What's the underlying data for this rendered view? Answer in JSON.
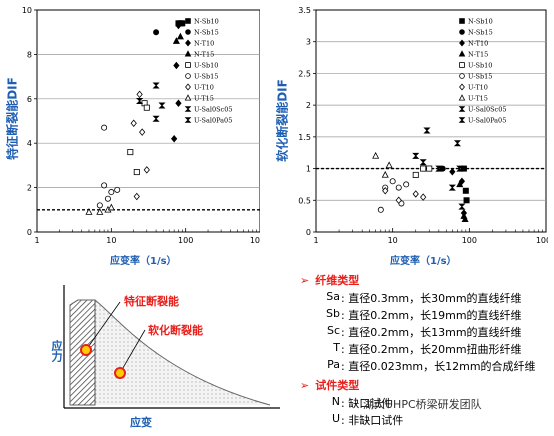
{
  "chart_data": [
    {
      "type": "scatter",
      "xlabel": "应变率（1/s）",
      "ylabel": "特征断裂能DIF",
      "xscale": "log",
      "xlim": [
        1,
        1000
      ],
      "ylim": [
        0,
        10
      ],
      "xticks": [
        "1",
        "10",
        "100",
        "1000"
      ],
      "yticks": [
        "0",
        "2",
        "4",
        "6",
        "8",
        "10"
      ],
      "grid": "horizontal",
      "ref_line": 1,
      "legend_position": "right",
      "series": [
        {
          "name": "N-Sb10",
          "marker": "square-filled",
          "points": [
            [
              80,
              9.4
            ],
            [
              85,
              9.4
            ],
            [
              90,
              9.4
            ]
          ]
        },
        {
          "name": "N-Sb15",
          "marker": "circle-filled",
          "points": [
            [
              40,
              9.0
            ]
          ]
        },
        {
          "name": "N-T10",
          "marker": "diamond-filled",
          "points": [
            [
              80,
              9.3
            ],
            [
              75,
              7.5
            ],
            [
              80,
              5.8
            ],
            [
              70,
              4.2
            ]
          ]
        },
        {
          "name": "N-T15",
          "marker": "triangle-filled",
          "points": [
            [
              85,
              8.8
            ],
            [
              75,
              8.6
            ]
          ]
        },
        {
          "name": "U-Sb10",
          "marker": "square-open",
          "points": [
            [
              18,
              3.6
            ],
            [
              22,
              2.7
            ],
            [
              28,
              5.8
            ],
            [
              30,
              5.6
            ]
          ]
        },
        {
          "name": "U-Sb15",
          "marker": "circle-open",
          "points": [
            [
              8,
              4.7
            ],
            [
              8,
              2.1
            ],
            [
              12,
              1.9
            ],
            [
              10,
              1.8
            ],
            [
              7,
              1.2
            ],
            [
              9,
              1.5
            ]
          ]
        },
        {
          "name": "U-T10",
          "marker": "diamond-open",
          "points": [
            [
              24,
              6.2
            ],
            [
              26,
              4.5
            ],
            [
              20,
              4.9
            ],
            [
              22,
              1.6
            ],
            [
              30,
              2.8
            ]
          ]
        },
        {
          "name": "U-T15",
          "marker": "triangle-open",
          "points": [
            [
              5,
              0.9
            ],
            [
              7,
              0.9
            ],
            [
              9,
              1.0
            ],
            [
              10,
              1.1
            ]
          ]
        },
        {
          "name": "U-Sal0Sc05",
          "marker": "bowtie-filled",
          "points": [
            [
              24,
              5.9
            ],
            [
              40,
              5.1
            ],
            [
              40,
              6.6
            ]
          ]
        },
        {
          "name": "U-Sal0Pa05",
          "marker": "bowtie-filled",
          "points": [
            [
              48,
              5.7
            ]
          ]
        }
      ]
    },
    {
      "type": "scatter",
      "xlabel": "应变率（1/s）",
      "ylabel": "软化断裂能DIF",
      "xscale": "log",
      "xlim": [
        1,
        1000
      ],
      "ylim": [
        0,
        3.5
      ],
      "xticks": [
        "1",
        "10",
        "100",
        "1000"
      ],
      "yticks": [
        "0",
        "0.5",
        "1",
        "1.5",
        "2",
        "2.5",
        "3",
        "3.5"
      ],
      "grid": "horizontal",
      "ref_line": 1,
      "legend_position": "right",
      "series": [
        {
          "name": "N-Sb10",
          "marker": "square-filled",
          "points": [
            [
              85,
              1.0
            ],
            [
              90,
              0.65
            ],
            [
              92,
              0.5
            ]
          ]
        },
        {
          "name": "N-Sb15",
          "marker": "circle-filled",
          "points": [
            [
              45,
              1.0
            ]
          ]
        },
        {
          "name": "N-T10",
          "marker": "diamond-filled",
          "points": [
            [
              60,
              0.95
            ],
            [
              80,
              0.8
            ],
            [
              85,
              0.3
            ]
          ]
        },
        {
          "name": "N-T15",
          "marker": "triangle-filled",
          "points": [
            [
              75,
              0.75
            ],
            [
              85,
              0.25
            ],
            [
              88,
              0.2
            ]
          ]
        },
        {
          "name": "U-Sb10",
          "marker": "square-open",
          "points": [
            [
              20,
              0.9
            ],
            [
              25,
              1.0
            ],
            [
              30,
              1.0
            ]
          ]
        },
        {
          "name": "U-Sb15",
          "marker": "circle-open",
          "points": [
            [
              7,
              0.35
            ],
            [
              8,
              0.7
            ],
            [
              12,
              0.7
            ],
            [
              13,
              0.45
            ],
            [
              15,
              0.75
            ],
            [
              10,
              0.8
            ]
          ]
        },
        {
          "name": "U-T10",
          "marker": "diamond-open",
          "points": [
            [
              8,
              0.65
            ],
            [
              12,
              0.5
            ],
            [
              20,
              0.6
            ],
            [
              25,
              0.55
            ]
          ]
        },
        {
          "name": "U-T15",
          "marker": "triangle-open",
          "points": [
            [
              6,
              1.2
            ],
            [
              8,
              0.9
            ],
            [
              9,
              1.05
            ]
          ]
        },
        {
          "name": "U-Sal0Sc05",
          "marker": "bowtie-filled",
          "points": [
            [
              20,
              1.2
            ],
            [
              25,
              1.1
            ],
            [
              28,
              1.6
            ],
            [
              40,
              1.0
            ],
            [
              70,
              1.4
            ],
            [
              75,
              1.0
            ]
          ]
        },
        {
          "name": "U-Sal0Pa05",
          "marker": "bowtie-filled",
          "points": [
            [
              60,
              0.7
            ],
            [
              80,
              0.4
            ]
          ]
        }
      ]
    }
  ],
  "diagram": {
    "ylabel": "应力",
    "xlabel": "应变",
    "label_characteristic": "特征断裂能",
    "label_softening": "软化断裂能"
  },
  "notes": {
    "fiber_header": "纤维类型",
    "fiber_types": [
      {
        "code": "Sa",
        "text": ": 直径0.3mm，长30mm的直线纤维"
      },
      {
        "code": "Sb",
        "text": ": 直径0.2mm，长19mm的直线纤维"
      },
      {
        "code": "Sc",
        "text": ": 直径0.2mm，长13mm的直线纤维"
      },
      {
        "code": "T",
        "text": ": 直径0.2mm，长20mm扭曲形纤维"
      },
      {
        "code": "Pa",
        "text": ": 直径0.023mm，长12mm的合成纤维"
      }
    ],
    "specimen_header": "试件类型",
    "specimen_types": [
      {
        "code": "N",
        "text": ": 缺口试件"
      },
      {
        "code": "U",
        "text": ": 非缺口试件"
      }
    ]
  },
  "watermark": "湖大UHPC桥梁研发团队",
  "colors": {
    "axis_label": "#1f5fb3",
    "highlight": "#e8201c",
    "marker_fill": "#ffcc00"
  }
}
